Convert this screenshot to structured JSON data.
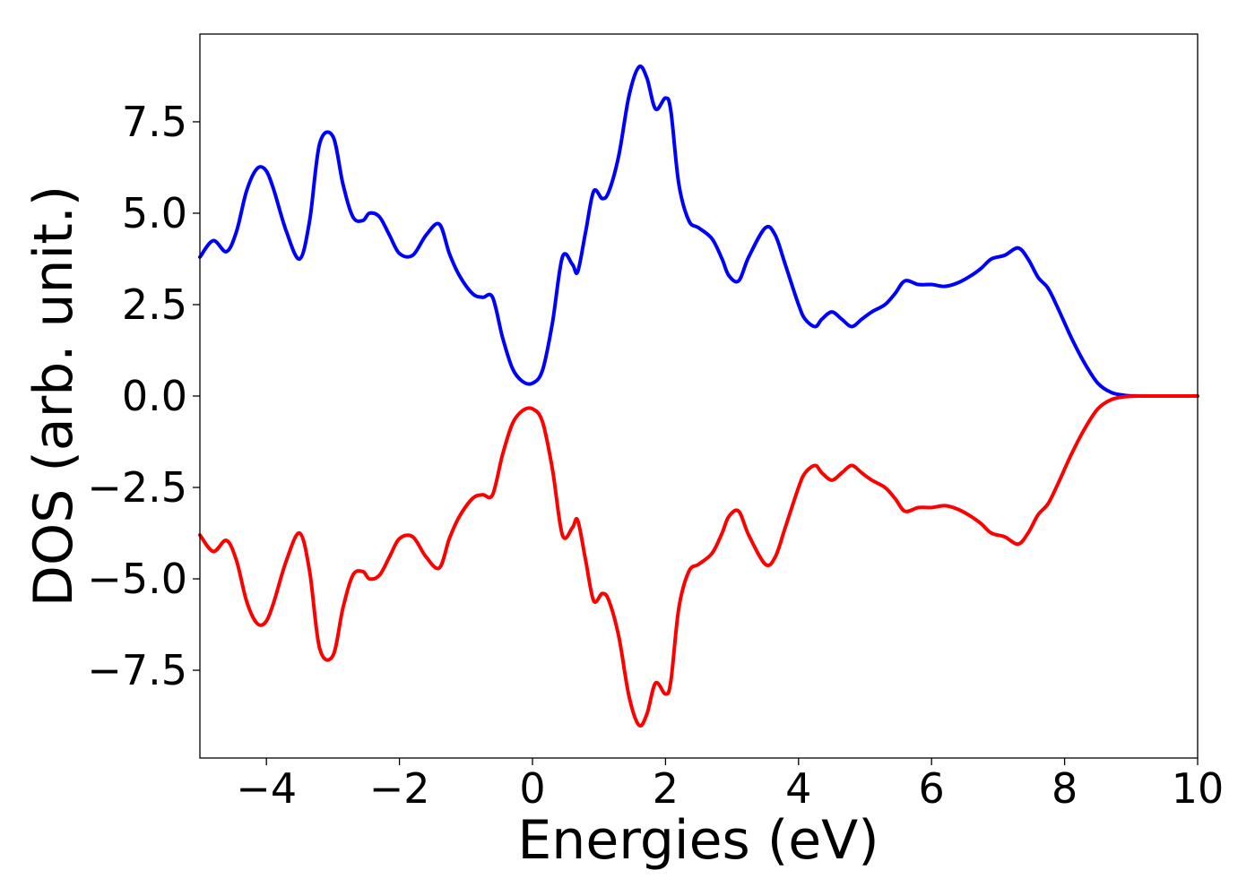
{
  "chart_data": {
    "type": "line",
    "title": "",
    "xlabel": "Energies (eV)",
    "ylabel": "DOS (arb. unit.)",
    "xlim": [
      -5,
      10
    ],
    "ylim": [
      -9.9,
      9.9
    ],
    "grid": false,
    "legend": "none",
    "x_ticks": [
      {
        "value": -4,
        "label": "−4"
      },
      {
        "value": -2,
        "label": "−2"
      },
      {
        "value": 0,
        "label": "0"
      },
      {
        "value": 2,
        "label": "2"
      },
      {
        "value": 4,
        "label": "4"
      },
      {
        "value": 6,
        "label": "6"
      },
      {
        "value": 8,
        "label": "8"
      },
      {
        "value": 10,
        "label": "10"
      }
    ],
    "y_ticks": [
      {
        "value": 7.5,
        "label": "7.5"
      },
      {
        "value": 5.0,
        "label": "5.0"
      },
      {
        "value": 2.5,
        "label": "2.5"
      },
      {
        "value": 0.0,
        "label": "0.0"
      },
      {
        "value": -2.5,
        "label": "−2.5"
      },
      {
        "value": -5.0,
        "label": "−5.0"
      },
      {
        "value": -7.5,
        "label": "−7.5"
      }
    ],
    "series": [
      {
        "color": "#0000ff",
        "x": [
          -5.0,
          -4.8,
          -4.6,
          -4.45,
          -4.3,
          -4.15,
          -4.02,
          -3.9,
          -3.7,
          -3.5,
          -3.35,
          -3.2,
          -3.0,
          -2.85,
          -2.7,
          -2.55,
          -2.45,
          -2.3,
          -2.15,
          -2.0,
          -1.8,
          -1.6,
          -1.4,
          -1.25,
          -1.1,
          -0.9,
          -0.75,
          -0.6,
          -0.45,
          -0.3,
          -0.15,
          0.0,
          0.15,
          0.3,
          0.45,
          0.6,
          0.68,
          0.8,
          0.92,
          1.05,
          1.15,
          1.3,
          1.45,
          1.6,
          1.72,
          1.85,
          2.0,
          2.08,
          2.2,
          2.35,
          2.5,
          2.7,
          2.85,
          2.95,
          3.1,
          3.25,
          3.5,
          3.65,
          3.8,
          4.0,
          4.1,
          4.25,
          4.35,
          4.5,
          4.65,
          4.8,
          4.95,
          5.1,
          5.3,
          5.45,
          5.6,
          5.8,
          6.0,
          6.2,
          6.4,
          6.6,
          6.75,
          6.9,
          7.1,
          7.3,
          7.45,
          7.6,
          7.75,
          7.9,
          8.1,
          8.3,
          8.5,
          8.7,
          8.9,
          9.1,
          9.3,
          10.0
        ],
        "values": [
          3.8,
          4.25,
          3.95,
          4.5,
          5.6,
          6.2,
          6.2,
          5.7,
          4.5,
          3.75,
          4.8,
          6.9,
          7.1,
          5.8,
          4.9,
          4.8,
          5.0,
          4.9,
          4.4,
          3.9,
          3.85,
          4.4,
          4.7,
          3.9,
          3.3,
          2.8,
          2.7,
          2.7,
          1.6,
          0.75,
          0.4,
          0.35,
          0.7,
          2.0,
          3.8,
          3.6,
          3.4,
          4.5,
          5.6,
          5.4,
          5.6,
          6.6,
          8.2,
          9.0,
          8.7,
          7.85,
          8.15,
          7.8,
          5.8,
          4.8,
          4.6,
          4.3,
          3.75,
          3.3,
          3.15,
          3.8,
          4.6,
          4.4,
          3.6,
          2.5,
          2.1,
          1.9,
          2.1,
          2.3,
          2.1,
          1.9,
          2.1,
          2.3,
          2.5,
          2.8,
          3.15,
          3.05,
          3.05,
          3.0,
          3.1,
          3.3,
          3.5,
          3.75,
          3.85,
          4.05,
          3.75,
          3.25,
          2.95,
          2.4,
          1.6,
          0.9,
          0.35,
          0.1,
          0.02,
          0.0,
          0.0,
          0.0
        ]
      },
      {
        "color": "#ff0000",
        "x": [
          -5.0,
          -4.8,
          -4.6,
          -4.45,
          -4.3,
          -4.15,
          -4.02,
          -3.9,
          -3.7,
          -3.5,
          -3.35,
          -3.2,
          -3.0,
          -2.85,
          -2.7,
          -2.55,
          -2.45,
          -2.3,
          -2.15,
          -2.0,
          -1.8,
          -1.6,
          -1.4,
          -1.25,
          -1.1,
          -0.9,
          -0.75,
          -0.6,
          -0.45,
          -0.3,
          -0.15,
          0.0,
          0.15,
          0.3,
          0.45,
          0.6,
          0.68,
          0.8,
          0.92,
          1.05,
          1.15,
          1.3,
          1.45,
          1.6,
          1.72,
          1.85,
          2.0,
          2.08,
          2.2,
          2.35,
          2.5,
          2.7,
          2.85,
          2.95,
          3.1,
          3.25,
          3.5,
          3.65,
          3.8,
          4.0,
          4.1,
          4.25,
          4.35,
          4.5,
          4.65,
          4.8,
          4.95,
          5.1,
          5.3,
          5.45,
          5.6,
          5.8,
          6.0,
          6.2,
          6.4,
          6.6,
          6.75,
          6.9,
          7.1,
          7.3,
          7.45,
          7.6,
          7.75,
          7.9,
          8.1,
          8.3,
          8.5,
          8.7,
          8.9,
          9.1,
          9.3,
          10.0
        ],
        "values": [
          -3.8,
          -4.25,
          -3.95,
          -4.5,
          -5.6,
          -6.2,
          -6.2,
          -5.7,
          -4.5,
          -3.75,
          -4.8,
          -6.9,
          -7.1,
          -5.8,
          -4.9,
          -4.8,
          -5.0,
          -4.9,
          -4.4,
          -3.9,
          -3.85,
          -4.4,
          -4.7,
          -3.9,
          -3.3,
          -2.8,
          -2.7,
          -2.7,
          -1.6,
          -0.75,
          -0.4,
          -0.35,
          -0.7,
          -2.0,
          -3.8,
          -3.6,
          -3.4,
          -4.5,
          -5.6,
          -5.4,
          -5.6,
          -6.6,
          -8.2,
          -9.0,
          -8.7,
          -7.85,
          -8.15,
          -7.8,
          -5.8,
          -4.8,
          -4.6,
          -4.3,
          -3.75,
          -3.3,
          -3.15,
          -3.8,
          -4.6,
          -4.4,
          -3.6,
          -2.5,
          -2.1,
          -1.9,
          -2.1,
          -2.3,
          -2.1,
          -1.9,
          -2.1,
          -2.3,
          -2.5,
          -2.8,
          -3.15,
          -3.05,
          -3.05,
          -3.0,
          -3.1,
          -3.3,
          -3.5,
          -3.75,
          -3.85,
          -4.05,
          -3.75,
          -3.25,
          -2.95,
          -2.4,
          -1.6,
          -0.9,
          -0.35,
          -0.1,
          -0.02,
          0.0,
          0.0,
          0.0
        ]
      }
    ]
  }
}
